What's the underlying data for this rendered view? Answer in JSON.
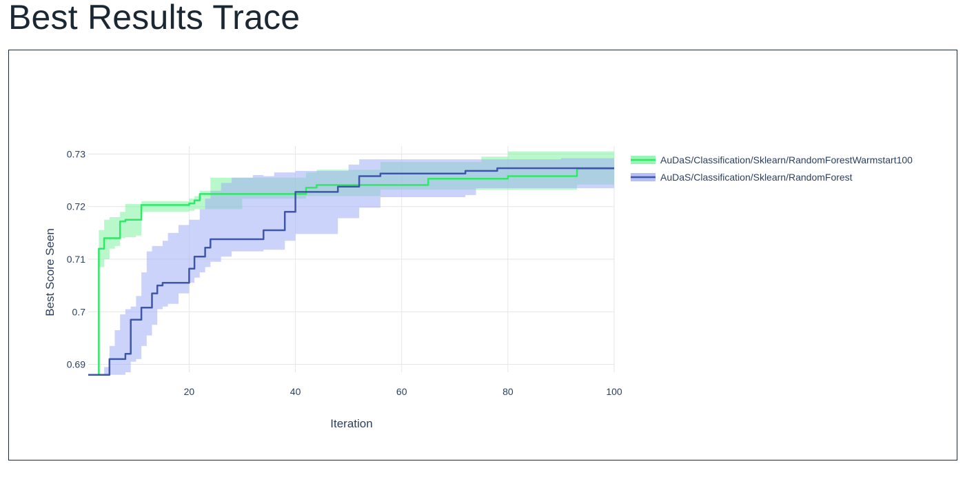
{
  "page": {
    "title": "Best Results Trace"
  },
  "chart_data": {
    "type": "line",
    "xlabel": "Iteration",
    "ylabel": "Best Score Seen",
    "xlim": [
      1,
      100
    ],
    "ylim": [
      0.6885,
      0.7315
    ],
    "x_ticks": [
      20,
      40,
      60,
      80,
      100
    ],
    "y_ticks": [
      0.69,
      0.7,
      0.71,
      0.72,
      0.73
    ],
    "x_tick_labels": [
      "20",
      "40",
      "60",
      "80",
      "100"
    ],
    "y_tick_labels": [
      "0.69",
      "0.7",
      "0.71",
      "0.72",
      "0.73"
    ],
    "grid": true,
    "legend_position": "right",
    "series": [
      {
        "name": "AuDaS/Classification/Sklearn/RandomForestWarmstart100",
        "line_color": "#2fe866",
        "band_color": "#7ef2a0",
        "x": [
          1,
          2,
          3,
          4,
          5,
          6,
          7,
          8,
          10,
          11,
          12,
          15,
          18,
          20,
          21,
          22,
          24,
          30,
          35,
          40,
          42,
          44,
          48,
          52,
          56,
          60,
          64,
          65,
          66,
          70,
          75,
          80,
          85,
          90,
          92,
          93,
          100
        ],
        "mean": [
          0.688,
          0.688,
          0.712,
          0.714,
          0.714,
          0.714,
          0.7172,
          0.7175,
          0.7175,
          0.7203,
          0.7203,
          0.7203,
          0.7203,
          0.7206,
          0.7212,
          0.7224,
          0.7224,
          0.7224,
          0.7224,
          0.7224,
          0.7236,
          0.7241,
          0.7241,
          0.7241,
          0.7241,
          0.7241,
          0.7241,
          0.7253,
          0.7253,
          0.7253,
          0.7253,
          0.7258,
          0.7258,
          0.7258,
          0.7258,
          0.7272,
          0.7272
        ],
        "upper": [
          0.688,
          0.688,
          0.7155,
          0.7175,
          0.718,
          0.718,
          0.719,
          0.7205,
          0.7205,
          0.721,
          0.721,
          0.721,
          0.721,
          0.7215,
          0.722,
          0.723,
          0.7255,
          0.7255,
          0.7255,
          0.7255,
          0.7265,
          0.727,
          0.727,
          0.727,
          0.7285,
          0.7285,
          0.7285,
          0.7285,
          0.7285,
          0.7285,
          0.7295,
          0.7305,
          0.7305,
          0.7305,
          0.7305,
          0.7305,
          0.7305
        ],
        "lower": [
          0.688,
          0.688,
          0.7085,
          0.71,
          0.712,
          0.7125,
          0.714,
          0.7142,
          0.7145,
          0.719,
          0.719,
          0.719,
          0.719,
          0.7192,
          0.7195,
          0.7195,
          0.7195,
          0.7215,
          0.7215,
          0.7215,
          0.722,
          0.722,
          0.722,
          0.722,
          0.7232,
          0.7232,
          0.7232,
          0.7232,
          0.7232,
          0.7232,
          0.7232,
          0.7232,
          0.7232,
          0.7232,
          0.7232,
          0.7242,
          0.7242
        ]
      },
      {
        "name": "AuDaS/Classification/Sklearn/RandomForest",
        "line_color": "#3e56a8",
        "band_color": "#a3aef5",
        "x": [
          1,
          2,
          3,
          4,
          5,
          6,
          7,
          8,
          9,
          10,
          11,
          12,
          13,
          14,
          15,
          16,
          18,
          20,
          21,
          22,
          23,
          24,
          26,
          28,
          30,
          32,
          34,
          36,
          38,
          40,
          42,
          44,
          46,
          48,
          50,
          52,
          54,
          56,
          58,
          60,
          62,
          64,
          66,
          70,
          72,
          74,
          78,
          80,
          85,
          90,
          95,
          100
        ],
        "mean": [
          0.688,
          0.688,
          0.688,
          0.688,
          0.691,
          0.691,
          0.691,
          0.692,
          0.6985,
          0.6985,
          0.7008,
          0.7008,
          0.7035,
          0.705,
          0.7055,
          0.7055,
          0.7055,
          0.7082,
          0.7105,
          0.7105,
          0.7122,
          0.7138,
          0.7138,
          0.7138,
          0.7138,
          0.7138,
          0.7155,
          0.7155,
          0.719,
          0.7228,
          0.7228,
          0.7228,
          0.7228,
          0.7238,
          0.7238,
          0.7258,
          0.7258,
          0.7263,
          0.7263,
          0.7263,
          0.7263,
          0.7263,
          0.7263,
          0.7263,
          0.7268,
          0.7268,
          0.7273,
          0.7273,
          0.7273,
          0.7273,
          0.7273,
          0.7273
        ],
        "upper": [
          0.688,
          0.688,
          0.688,
          0.6895,
          0.6935,
          0.6965,
          0.6995,
          0.7005,
          0.701,
          0.703,
          0.7075,
          0.7115,
          0.7125,
          0.7125,
          0.7135,
          0.715,
          0.7165,
          0.7175,
          0.7175,
          0.7195,
          0.7215,
          0.723,
          0.7245,
          0.7255,
          0.7255,
          0.726,
          0.7258,
          0.7265,
          0.7265,
          0.7268,
          0.7268,
          0.7268,
          0.7268,
          0.7268,
          0.728,
          0.729,
          0.729,
          0.729,
          0.729,
          0.729,
          0.729,
          0.729,
          0.729,
          0.729,
          0.729,
          0.729,
          0.729,
          0.729,
          0.729,
          0.7292,
          0.7292,
          0.7295
        ],
        "lower": [
          0.688,
          0.688,
          0.688,
          0.688,
          0.688,
          0.688,
          0.688,
          0.6885,
          0.6905,
          0.691,
          0.6935,
          0.6955,
          0.6975,
          0.7005,
          0.701,
          0.7015,
          0.7035,
          0.7055,
          0.7065,
          0.7075,
          0.7085,
          0.7095,
          0.7105,
          0.7115,
          0.7115,
          0.7115,
          0.7118,
          0.7118,
          0.7135,
          0.7148,
          0.7148,
          0.7148,
          0.7148,
          0.7178,
          0.7178,
          0.7198,
          0.7198,
          0.7218,
          0.7218,
          0.7218,
          0.7218,
          0.7218,
          0.7218,
          0.7218,
          0.7222,
          0.7235,
          0.7235,
          0.7235,
          0.7235,
          0.7235,
          0.7235,
          0.7242
        ]
      }
    ]
  }
}
